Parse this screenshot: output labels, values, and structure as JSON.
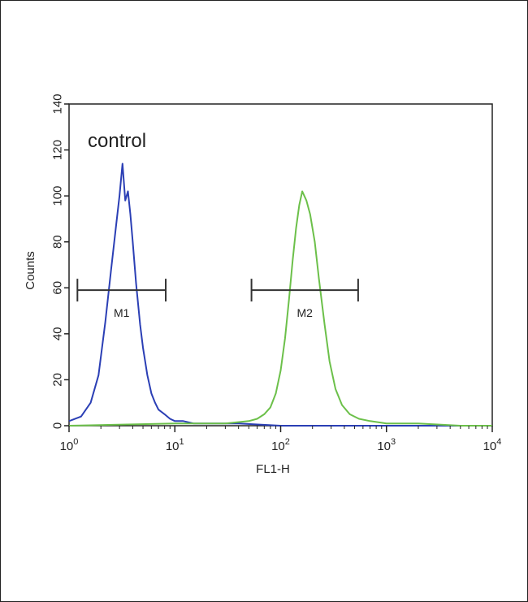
{
  "chart_data": {
    "type": "line",
    "title": "",
    "xlabel": "FL1-H",
    "ylabel": "Counts",
    "xscale": "log",
    "xlim": [
      1,
      10000
    ],
    "ylim": [
      0,
      140
    ],
    "y_ticks": [
      0,
      20,
      40,
      60,
      80,
      100,
      120,
      140
    ],
    "x_ticks": [
      {
        "value": 1,
        "base": "10",
        "exp": "0"
      },
      {
        "value": 10,
        "base": "10",
        "exp": "1"
      },
      {
        "value": 100,
        "base": "10",
        "exp": "2"
      },
      {
        "value": 1000,
        "base": "10",
        "exp": "3"
      },
      {
        "value": 10000,
        "base": "10",
        "exp": "4"
      }
    ],
    "annotation": "control",
    "colors": {
      "blue": "#2b3fb5",
      "green": "#6cc04a",
      "axis": "#222222"
    },
    "series": [
      {
        "color": "#2b3fb5",
        "x": [
          1.0,
          1.3,
          1.6,
          1.9,
          2.2,
          2.5,
          2.8,
          3.0,
          3.2,
          3.4,
          3.6,
          3.8,
          4.0,
          4.3,
          4.7,
          5.0,
          5.5,
          6.0,
          6.5,
          7.0,
          8.0,
          9.0,
          10.0,
          12.0,
          15.0,
          20.0,
          40.0,
          100.0,
          1000.0,
          10000.0
        ],
        "y": [
          2,
          4,
          10,
          22,
          45,
          68,
          88,
          100,
          114,
          98,
          102,
          92,
          80,
          62,
          44,
          34,
          22,
          14,
          10,
          7,
          5,
          3,
          2,
          2,
          1,
          1,
          1,
          0,
          0,
          0
        ]
      },
      {
        "color": "#6cc04a",
        "x": [
          1.0,
          10.0,
          30.0,
          50.0,
          60.0,
          70.0,
          80.0,
          90.0,
          100.0,
          110.0,
          120.0,
          130.0,
          140.0,
          150.0,
          160.0,
          175.0,
          190.0,
          210.0,
          230.0,
          260.0,
          290.0,
          330.0,
          380.0,
          450.0,
          550.0,
          700.0,
          1000.0,
          2000.0,
          5000.0,
          10000.0
        ],
        "y": [
          0,
          1,
          1,
          2,
          3,
          5,
          8,
          14,
          24,
          38,
          55,
          72,
          86,
          96,
          102,
          98,
          92,
          80,
          64,
          44,
          28,
          16,
          9,
          5,
          3,
          2,
          1,
          1,
          0,
          0
        ]
      }
    ],
    "markers": [
      {
        "label": "M1",
        "x_start": 1.2,
        "x_end": 8.2,
        "y": 59
      },
      {
        "label": "M2",
        "x_start": 53,
        "x_end": 540,
        "y": 59
      }
    ]
  }
}
